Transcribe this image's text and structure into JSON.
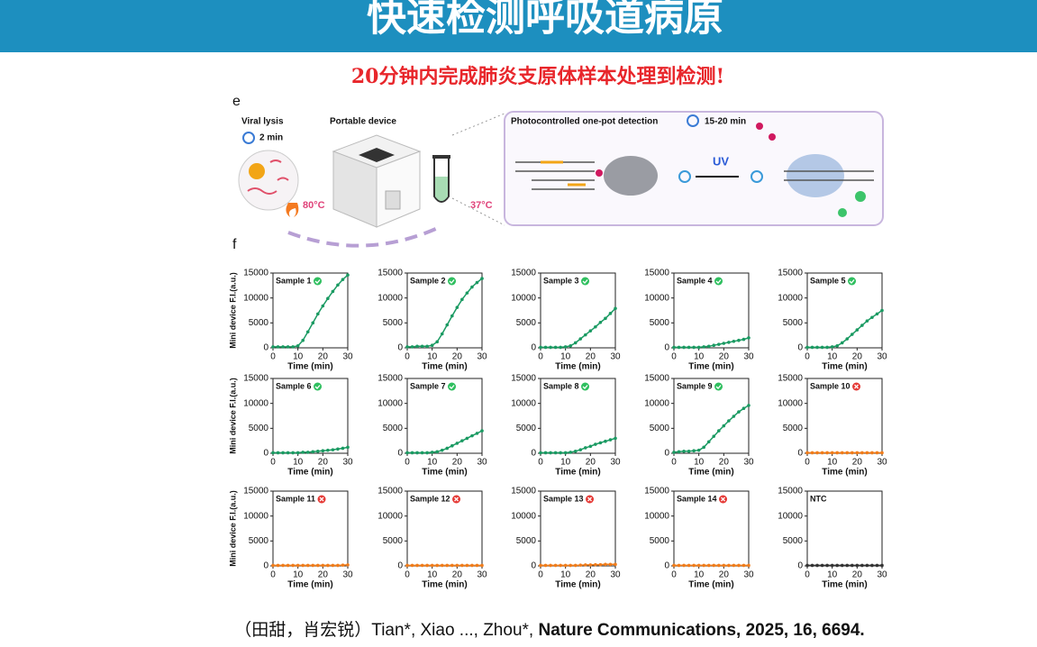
{
  "header": {
    "title": "快速检测呼吸道病原"
  },
  "subtitle": "20分钟内完成肺炎支原体样本处理到检测!",
  "panel_e": {
    "label": "e",
    "viral_lysis": "Viral lysis",
    "lysis_time": "2 min",
    "device": "Portable device",
    "temp_high": "80°C",
    "temp_low": "37°C",
    "detection": "Photocontrolled one-pot detection",
    "detection_time": "15-20 min",
    "uv": "UV"
  },
  "panel_f": {
    "label": "f"
  },
  "citation": {
    "authors": "（田甜，肖宏锐）Tian*, Xiao ..., Zhou*, ",
    "journal": "Nature Communications, 2025, 16, 6694."
  },
  "chart_data": [
    {
      "type": "line",
      "title": "Sample 1",
      "icon": "check",
      "ylabel": "Mini device F.I.(a.u.)",
      "xlabel": "Time (min)",
      "x": [
        0,
        2,
        4,
        6,
        8,
        10,
        12,
        14,
        16,
        18,
        20,
        22,
        24,
        26,
        28,
        30
      ],
      "series": [
        {
          "color": "#1a9a62",
          "values": [
            200,
            200,
            200,
            200,
            200,
            400,
            1500,
            3200,
            5000,
            6800,
            8400,
            9900,
            11300,
            12600,
            13700,
            14600
          ]
        }
      ],
      "xlim": [
        0,
        30
      ],
      "xticks": [
        0,
        10,
        20,
        30
      ],
      "ylim": [
        0,
        15000
      ],
      "yticks": [
        0,
        5000,
        10000,
        15000
      ]
    },
    {
      "type": "line",
      "title": "Sample 2",
      "icon": "check",
      "xlabel": "Time (min)",
      "x": [
        0,
        2,
        4,
        6,
        8,
        10,
        12,
        14,
        16,
        18,
        20,
        22,
        24,
        26,
        28,
        30
      ],
      "series": [
        {
          "color": "#1a9a62",
          "values": [
            200,
            200,
            300,
            300,
            300,
            500,
            1200,
            2800,
            4600,
            6400,
            8100,
            9700,
            11000,
            12200,
            13100,
            13900
          ]
        }
      ],
      "xlim": [
        0,
        30
      ],
      "xticks": [
        0,
        10,
        20,
        30
      ],
      "ylim": [
        0,
        15000
      ],
      "yticks": [
        0,
        5000,
        10000,
        15000
      ]
    },
    {
      "type": "line",
      "title": "Sample 3",
      "icon": "check",
      "xlabel": "Time (min)",
      "x": [
        0,
        2,
        4,
        6,
        8,
        10,
        12,
        14,
        16,
        18,
        20,
        22,
        24,
        26,
        28,
        30
      ],
      "series": [
        {
          "color": "#1a9a62",
          "values": [
            100,
            100,
            100,
            100,
            100,
            200,
            400,
            1000,
            1800,
            2600,
            3400,
            4200,
            5100,
            5900,
            6900,
            7900
          ]
        }
      ],
      "xlim": [
        0,
        30
      ],
      "xticks": [
        0,
        10,
        20,
        30
      ],
      "ylim": [
        0,
        15000
      ],
      "yticks": [
        0,
        5000,
        10000,
        15000
      ]
    },
    {
      "type": "line",
      "title": "Sample 4",
      "icon": "check",
      "xlabel": "Time (min)",
      "x": [
        0,
        2,
        4,
        6,
        8,
        10,
        12,
        14,
        16,
        18,
        20,
        22,
        24,
        26,
        28,
        30
      ],
      "series": [
        {
          "color": "#1a9a62",
          "values": [
            100,
            100,
            100,
            100,
            100,
            100,
            200,
            300,
            500,
            700,
            900,
            1100,
            1300,
            1500,
            1700,
            2000
          ]
        }
      ],
      "xlim": [
        0,
        30
      ],
      "xticks": [
        0,
        10,
        20,
        30
      ],
      "ylim": [
        0,
        15000
      ],
      "yticks": [
        0,
        5000,
        10000,
        15000
      ]
    },
    {
      "type": "line",
      "title": "Sample 5",
      "icon": "check",
      "xlabel": "Time (min)",
      "x": [
        0,
        2,
        4,
        6,
        8,
        10,
        12,
        14,
        16,
        18,
        20,
        22,
        24,
        26,
        28,
        30
      ],
      "series": [
        {
          "color": "#1a9a62",
          "values": [
            100,
            100,
            100,
            100,
            100,
            200,
            400,
            1000,
            1800,
            2700,
            3600,
            4500,
            5400,
            6100,
            6800,
            7500
          ]
        }
      ],
      "xlim": [
        0,
        30
      ],
      "xticks": [
        0,
        10,
        20,
        30
      ],
      "ylim": [
        0,
        15000
      ],
      "yticks": [
        0,
        5000,
        10000,
        15000
      ]
    },
    {
      "type": "line",
      "title": "Sample 6",
      "icon": "check",
      "ylabel": "Mini device F.I.(a.u.)",
      "xlabel": "Time (min)",
      "x": [
        0,
        2,
        4,
        6,
        8,
        10,
        12,
        14,
        16,
        18,
        20,
        22,
        24,
        26,
        28,
        30
      ],
      "series": [
        {
          "color": "#1a9a62",
          "values": [
            100,
            100,
            100,
            100,
            100,
            100,
            200,
            200,
            300,
            400,
            500,
            600,
            700,
            850,
            1000,
            1200
          ]
        }
      ],
      "xlim": [
        0,
        30
      ],
      "xticks": [
        0,
        10,
        20,
        30
      ],
      "ylim": [
        0,
        15000
      ],
      "yticks": [
        0,
        5000,
        10000,
        15000
      ]
    },
    {
      "type": "line",
      "title": "Sample 7",
      "icon": "check",
      "xlabel": "Time (min)",
      "x": [
        0,
        2,
        4,
        6,
        8,
        10,
        12,
        14,
        16,
        18,
        20,
        22,
        24,
        26,
        28,
        30
      ],
      "series": [
        {
          "color": "#1a9a62",
          "values": [
            100,
            100,
            100,
            100,
            100,
            200,
            300,
            600,
            1000,
            1500,
            2000,
            2500,
            3000,
            3500,
            4000,
            4500
          ]
        }
      ],
      "xlim": [
        0,
        30
      ],
      "xticks": [
        0,
        10,
        20,
        30
      ],
      "ylim": [
        0,
        15000
      ],
      "yticks": [
        0,
        5000,
        10000,
        15000
      ]
    },
    {
      "type": "line",
      "title": "Sample 8",
      "icon": "check",
      "xlabel": "Time (min)",
      "x": [
        0,
        2,
        4,
        6,
        8,
        10,
        12,
        14,
        16,
        18,
        20,
        22,
        24,
        26,
        28,
        30
      ],
      "series": [
        {
          "color": "#1a9a62",
          "values": [
            100,
            100,
            100,
            100,
            100,
            100,
            200,
            400,
            700,
            1100,
            1400,
            1800,
            2100,
            2400,
            2700,
            3000
          ]
        }
      ],
      "xlim": [
        0,
        30
      ],
      "xticks": [
        0,
        10,
        20,
        30
      ],
      "ylim": [
        0,
        15000
      ],
      "yticks": [
        0,
        5000,
        10000,
        15000
      ]
    },
    {
      "type": "line",
      "title": "Sample 9",
      "icon": "check",
      "xlabel": "Time (min)",
      "x": [
        0,
        2,
        4,
        6,
        8,
        10,
        12,
        14,
        16,
        18,
        20,
        22,
        24,
        26,
        28,
        30
      ],
      "series": [
        {
          "color": "#1a9a62",
          "values": [
            200,
            300,
            400,
            400,
            500,
            600,
            1200,
            2300,
            3400,
            4500,
            5500,
            6500,
            7400,
            8300,
            9000,
            9600
          ]
        }
      ],
      "xlim": [
        0,
        30
      ],
      "xticks": [
        0,
        10,
        20,
        30
      ],
      "ylim": [
        0,
        15000
      ],
      "yticks": [
        0,
        5000,
        10000,
        15000
      ]
    },
    {
      "type": "line",
      "title": "Sample 10",
      "icon": "cross",
      "xlabel": "Time (min)",
      "x": [
        0,
        2,
        4,
        6,
        8,
        10,
        12,
        14,
        16,
        18,
        20,
        22,
        24,
        26,
        28,
        30
      ],
      "series": [
        {
          "color": "#f07c1a",
          "values": [
            100,
            100,
            100,
            100,
            100,
            100,
            100,
            100,
            100,
            100,
            100,
            100,
            100,
            100,
            100,
            100
          ]
        }
      ],
      "xlim": [
        0,
        30
      ],
      "xticks": [
        0,
        10,
        20,
        30
      ],
      "ylim": [
        0,
        15000
      ],
      "yticks": [
        0,
        5000,
        10000,
        15000
      ]
    },
    {
      "type": "line",
      "title": "Sample 11",
      "icon": "cross",
      "ylabel": "Mini device F.I.(a.u.)",
      "xlabel": "Time (min)",
      "x": [
        0,
        2,
        4,
        6,
        8,
        10,
        12,
        14,
        16,
        18,
        20,
        22,
        24,
        26,
        28,
        30
      ],
      "series": [
        {
          "color": "#f07c1a",
          "values": [
            100,
            100,
            100,
            100,
            100,
            100,
            100,
            100,
            100,
            100,
            100,
            100,
            100,
            100,
            150,
            200
          ]
        }
      ],
      "xlim": [
        0,
        30
      ],
      "xticks": [
        0,
        10,
        20,
        30
      ],
      "ylim": [
        0,
        15000
      ],
      "yticks": [
        0,
        5000,
        10000,
        15000
      ]
    },
    {
      "type": "line",
      "title": "Sample 12",
      "icon": "cross",
      "xlabel": "Time (min)",
      "x": [
        0,
        2,
        4,
        6,
        8,
        10,
        12,
        14,
        16,
        18,
        20,
        22,
        24,
        26,
        28,
        30
      ],
      "series": [
        {
          "color": "#f07c1a",
          "values": [
            100,
            100,
            100,
            100,
            100,
            100,
            100,
            100,
            100,
            100,
            100,
            100,
            100,
            100,
            100,
            100
          ]
        }
      ],
      "xlim": [
        0,
        30
      ],
      "xticks": [
        0,
        10,
        20,
        30
      ],
      "ylim": [
        0,
        15000
      ],
      "yticks": [
        0,
        5000,
        10000,
        15000
      ]
    },
    {
      "type": "line",
      "title": "Sample 13",
      "icon": "cross",
      "xlabel": "Time (min)",
      "x": [
        0,
        2,
        4,
        6,
        8,
        10,
        12,
        14,
        16,
        18,
        20,
        22,
        24,
        26,
        28,
        30
      ],
      "series": [
        {
          "color": "#f07c1a",
          "values": [
            100,
            100,
            100,
            100,
            100,
            100,
            100,
            100,
            150,
            200,
            200,
            250,
            250,
            300,
            300,
            300
          ]
        }
      ],
      "xlim": [
        0,
        30
      ],
      "xticks": [
        0,
        10,
        20,
        30
      ],
      "ylim": [
        0,
        15000
      ],
      "yticks": [
        0,
        5000,
        10000,
        15000
      ]
    },
    {
      "type": "line",
      "title": "Sample 14",
      "icon": "cross",
      "xlabel": "Time (min)",
      "x": [
        0,
        2,
        4,
        6,
        8,
        10,
        12,
        14,
        16,
        18,
        20,
        22,
        24,
        26,
        28,
        30
      ],
      "series": [
        {
          "color": "#f07c1a",
          "values": [
            100,
            100,
            100,
            100,
            100,
            100,
            100,
            100,
            100,
            100,
            100,
            100,
            100,
            100,
            100,
            100
          ]
        }
      ],
      "xlim": [
        0,
        30
      ],
      "xticks": [
        0,
        10,
        20,
        30
      ],
      "ylim": [
        0,
        15000
      ],
      "yticks": [
        0,
        5000,
        10000,
        15000
      ]
    },
    {
      "type": "line",
      "title": "NTC",
      "xlabel": "Time (min)",
      "x": [
        0,
        2,
        4,
        6,
        8,
        10,
        12,
        14,
        16,
        18,
        20,
        22,
        24,
        26,
        28,
        30
      ],
      "series": [
        {
          "color": "#333333",
          "values": [
            100,
            100,
            100,
            100,
            100,
            100,
            100,
            100,
            100,
            100,
            100,
            100,
            100,
            100,
            100,
            100
          ]
        }
      ],
      "xlim": [
        0,
        30
      ],
      "xticks": [
        0,
        10,
        20,
        30
      ],
      "ylim": [
        0,
        15000
      ],
      "yticks": [
        0,
        5000,
        10000,
        15000
      ]
    }
  ]
}
